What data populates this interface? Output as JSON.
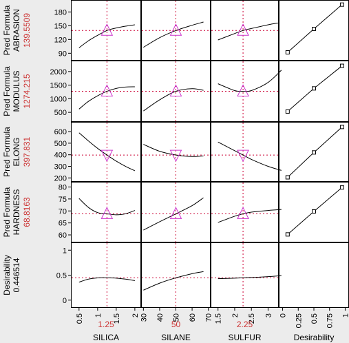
{
  "colors": {
    "background": "#ececec",
    "panel": "#ffffff",
    "curve": "#000000",
    "crosshair": "#cc0033",
    "marker": "#cc33cc",
    "value_text": "#cc3333",
    "label_text": "#000000"
  },
  "chart_data": {
    "type": "line",
    "title": "",
    "factors": [
      {
        "name": "SILICA",
        "current": 1.25,
        "current_label": "1.25",
        "range": [
          0.3,
          2.15
        ],
        "ticks": [
          "0.5",
          "1",
          "1.5",
          "2"
        ]
      },
      {
        "name": "SILANE",
        "current": 50,
        "current_label": "50",
        "range": [
          29,
          71
        ],
        "ticks": [
          "30",
          "40",
          "50",
          "60",
          "70"
        ]
      },
      {
        "name": "SULFUR",
        "current": 2.25,
        "current_label": "2.25",
        "range": [
          1.3,
          3.3
        ],
        "ticks": [
          "1.5",
          "2",
          "2.5",
          "3"
        ]
      },
      {
        "name": "Desirability",
        "current": null,
        "current_label": "",
        "range": [
          -0.05,
          1.05
        ],
        "ticks": [
          "0",
          "0.25",
          "0.5",
          "0.75",
          "1"
        ]
      }
    ],
    "responses": [
      {
        "label_line1": "Pred Formula",
        "label_line2": "ABRASION",
        "value_label": "139.5509",
        "value": 139.5509,
        "ylim": [
          80,
          200
        ],
        "ticks": [
          "90",
          "120",
          "150",
          "180"
        ],
        "profiles": [
          {
            "x": [
              0.5,
              0.75,
              1.0,
              1.25,
              1.5,
              1.75,
              2.0
            ],
            "y": [
              102,
              117,
              129,
              139.55,
              145,
              149,
              152
            ]
          },
          {
            "x": [
              30,
              40,
              50,
              60,
              67
            ],
            "y": [
              103,
              124,
              139.55,
              151,
              158
            ]
          },
          {
            "x": [
              1.5,
              2.0,
              2.25,
              2.5,
              3.0,
              3.3
            ],
            "y": [
              119,
              133,
              139.55,
              144,
              152,
              156
            ]
          }
        ],
        "desirability": {
          "x": [
            0.08,
            0.5,
            0.95
          ],
          "y": [
            92,
            143,
            196
          ]
        }
      },
      {
        "label_line1": "Pred Formula",
        "label_line2": "MODULUS",
        "value_label": "1274.215",
        "value": 1274.215,
        "ylim": [
          250,
          2300
        ],
        "ticks": [
          "500",
          "1000",
          "1500",
          "2000"
        ],
        "profiles": [
          {
            "x": [
              0.5,
              0.75,
              1.0,
              1.25,
              1.5,
              1.75,
              2.0
            ],
            "y": [
              620,
              900,
              1110,
              1274.2,
              1380,
              1430,
              1440
            ]
          },
          {
            "x": [
              30,
              40,
              50,
              60,
              67
            ],
            "y": [
              550,
              960,
              1274.2,
              1370,
              1310
            ]
          },
          {
            "x": [
              1.5,
              2.0,
              2.25,
              2.5,
              3.0,
              3.4
            ],
            "y": [
              1550,
              1300,
              1274.2,
              1300,
              1600,
              2050
            ]
          }
        ],
        "desirability": {
          "x": [
            0.08,
            0.5,
            0.95
          ],
          "y": [
            530,
            1380,
            2210
          ]
        }
      },
      {
        "label_line1": "Pred Formula",
        "label_line2": "ELONG",
        "value_label": "397.831",
        "value": 397.831,
        "ylim": [
          190,
          660
        ],
        "ticks": [
          "200",
          "300",
          "400",
          "500",
          "600"
        ],
        "profiles": [
          {
            "x": [
              0.5,
              0.75,
              1.0,
              1.25,
              1.5,
              1.75,
              2.0
            ],
            "y": [
              590,
              520,
              455,
              397.8,
              345,
              300,
              262
            ]
          },
          {
            "x": [
              30,
              40,
              50,
              60,
              67
            ],
            "y": [
              490,
              430,
              397.8,
              385,
              390
            ]
          },
          {
            "x": [
              1.5,
              2.0,
              2.25,
              2.5,
              3.0,
              3.4
            ],
            "y": [
              510,
              435,
              397.8,
              360,
              300,
              265
            ]
          }
        ],
        "desirability": {
          "x": [
            0.08,
            0.5,
            0.95
          ],
          "y": [
            205,
            420,
            640
          ]
        }
      },
      {
        "label_line1": "Pred Formula",
        "label_line2": "HARDNESS",
        "value_label": "68.8163",
        "value": 68.8163,
        "ylim": [
          58,
          81
        ],
        "ticks": [
          "60",
          "65",
          "70",
          "75",
          "80"
        ],
        "profiles": [
          {
            "x": [
              0.5,
              0.75,
              1.0,
              1.25,
              1.5,
              1.75,
              2.0
            ],
            "y": [
              75.2,
              71.5,
              69.3,
              68.8,
              68.4,
              68.8,
              70.2
            ]
          },
          {
            "x": [
              30,
              40,
              50,
              60,
              67
            ],
            "y": [
              62,
              65.5,
              68.8,
              72.2,
              75.5
            ]
          },
          {
            "x": [
              1.5,
              2.0,
              2.25,
              2.5,
              3.0,
              3.4
            ],
            "y": [
              65.2,
              67.8,
              68.8,
              69.5,
              70.2,
              70.6
            ]
          }
        ],
        "desirability": {
          "x": [
            0.08,
            0.5,
            0.95
          ],
          "y": [
            60.2,
            69.8,
            79.8
          ]
        }
      },
      {
        "label_line1": "Desirability",
        "label_line2": "",
        "value_label": "0.446514",
        "value": 0.446514,
        "ylim": [
          -0.1,
          1.1
        ],
        "ticks": [
          "0",
          "0.5",
          "1"
        ],
        "profiles": [
          {
            "x": [
              0.5,
              0.75,
              1.0,
              1.25,
              1.5,
              1.75,
              2.0
            ],
            "y": [
              0.36,
              0.42,
              0.445,
              0.4465,
              0.44,
              0.42,
              0.39
            ]
          },
          {
            "x": [
              30,
              40,
              50,
              60,
              67
            ],
            "y": [
              0.2,
              0.34,
              0.4465,
              0.53,
              0.57
            ]
          },
          {
            "x": [
              1.5,
              2.0,
              2.25,
              2.5,
              3.0,
              3.4
            ],
            "y": [
              0.43,
              0.44,
              0.4465,
              0.453,
              0.47,
              0.49
            ]
          }
        ],
        "desirability": null
      }
    ],
    "grid": false,
    "legend": "none"
  }
}
